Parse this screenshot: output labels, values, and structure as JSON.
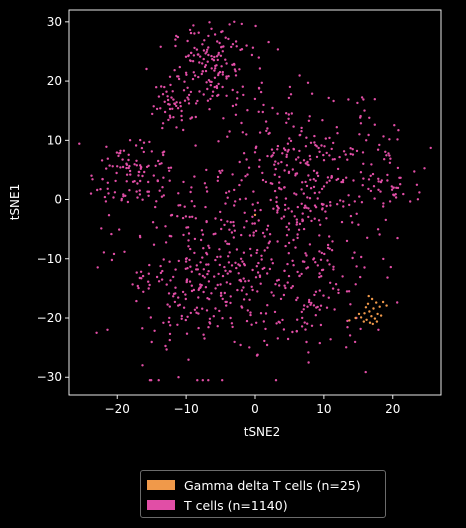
{
  "chart_data": {
    "type": "scatter",
    "xlabel": "tSNE2",
    "ylabel": "tSNE1",
    "xlim": [
      -27,
      27
    ],
    "ylim": [
      -33,
      32
    ],
    "xticks": [
      -20,
      -10,
      0,
      10,
      20
    ],
    "yticks": [
      -30,
      -20,
      -10,
      0,
      10,
      20,
      30
    ],
    "grid": false,
    "legend_position": "bottom-center, below plot",
    "series": [
      {
        "name": "Gamma delta T cells (n=25)",
        "color": "#f0994a",
        "points": [
          [
            17.0,
            -16.8
          ],
          [
            17.6,
            -17.4
          ],
          [
            16.4,
            -17.6
          ],
          [
            18.1,
            -18.1
          ],
          [
            17.2,
            -18.4
          ],
          [
            16.6,
            -18.9
          ],
          [
            15.9,
            -19.2
          ],
          [
            17.8,
            -19.3
          ],
          [
            16.9,
            -19.7
          ],
          [
            15.4,
            -19.9
          ],
          [
            16.2,
            -20.3
          ],
          [
            17.4,
            -20.1
          ],
          [
            18.3,
            -19.6
          ],
          [
            16.7,
            -20.8
          ],
          [
            15.8,
            -20.6
          ],
          [
            17.1,
            -21.0
          ],
          [
            18.6,
            -17.3
          ],
          [
            16.1,
            -18.2
          ],
          [
            17.7,
            -20.6
          ],
          [
            15.1,
            -19.3
          ],
          [
            0.0,
            -2.6
          ],
          [
            13.7,
            -20.4
          ],
          [
            19.1,
            -17.9
          ],
          [
            16.5,
            -16.3
          ],
          [
            14.6,
            -20.0
          ]
        ]
      },
      {
        "name": "T cells (n=1140)",
        "color": "#e14ea6",
        "clusters": [
          {
            "cx": -6.0,
            "cy": 22.5,
            "sx": 3.0,
            "sy": 3.5,
            "n": 150
          },
          {
            "cx": -11.5,
            "cy": 16.5,
            "sx": 2.0,
            "sy": 2.2,
            "n": 50
          },
          {
            "cx": -18.5,
            "cy": 4.5,
            "sx": 2.6,
            "sy": 3.0,
            "n": 95
          },
          {
            "cx": -8.0,
            "cy": -12.0,
            "sx": 6.0,
            "sy": 8.0,
            "n": 320
          },
          {
            "cx": 7.0,
            "cy": 3.0,
            "sx": 6.5,
            "sy": 8.0,
            "n": 360
          },
          {
            "cx": 20.0,
            "cy": 3.5,
            "sx": 2.5,
            "sy": 3.0,
            "n": 45
          },
          {
            "cx": 7.0,
            "cy": -17.0,
            "sx": 5.0,
            "sy": 5.0,
            "n": 120
          }
        ]
      }
    ]
  }
}
